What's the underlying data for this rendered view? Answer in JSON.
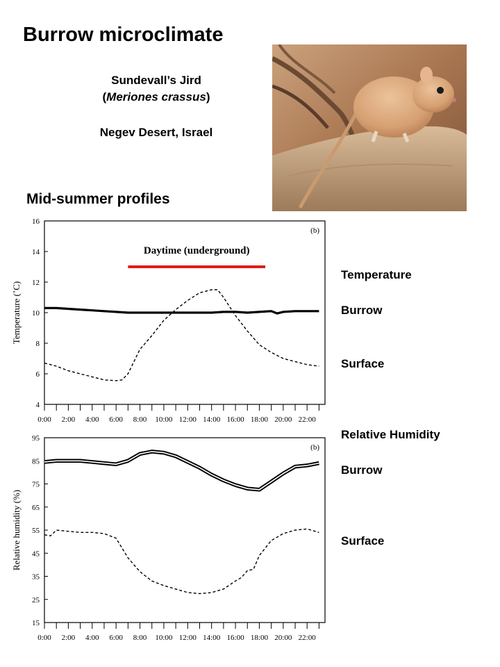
{
  "title": "Burrow microclimate",
  "species": {
    "common_name": "Sundevall’s Jird",
    "scientific_name_prefix": "(",
    "scientific_name": "Meriones crassus",
    "scientific_name_suffix": ")",
    "location": "Negev Desert, Israel"
  },
  "subtitle": "Mid-summer profiles",
  "legend_side": {
    "temperature_heading": "Temperature",
    "temp_burrow": "Burrow",
    "temp_surface": "Surface",
    "humidity_heading": "Relative Humidity",
    "rh_burrow": "Burrow",
    "rh_surface": "Surface"
  },
  "colors": {
    "daytime_bar": "#e01b1b",
    "line": "#000000",
    "photo_background": "#b07c54",
    "animal_fur": "#d9a478"
  },
  "photo": {
    "subject": "jird-on-rock"
  },
  "chart_data": [
    {
      "type": "line",
      "panel_label": "(b)",
      "ylabel": "Temperature (˚C)",
      "xlabel": "",
      "ylim": [
        4,
        16
      ],
      "yticks": [
        4,
        6,
        8,
        10,
        12,
        14,
        16
      ],
      "xlim": [
        0,
        23.5
      ],
      "xticks": [
        "0:00",
        "2:00",
        "4:00",
        "6:00",
        "8:00",
        "10:00",
        "12:00",
        "14:00",
        "16:00",
        "18:00",
        "20:00",
        "22:00"
      ],
      "annotation": {
        "label": "Daytime (underground)",
        "x_start": 7,
        "x_end": 18.5
      },
      "series": [
        {
          "style": "solid-thick",
          "x": [
            0,
            1,
            2,
            3,
            4,
            5,
            6,
            7,
            8,
            9,
            10,
            11,
            12,
            13,
            14,
            15,
            16,
            17,
            18,
            19,
            19.5,
            20,
            21,
            22,
            23
          ],
          "y": [
            10.3,
            10.3,
            10.25,
            10.2,
            10.15,
            10.1,
            10.05,
            10.0,
            10.0,
            10.0,
            10.0,
            10.0,
            10.0,
            10.0,
            10.0,
            10.05,
            10.05,
            10.0,
            10.05,
            10.1,
            9.95,
            10.05,
            10.1,
            10.1,
            10.1
          ]
        },
        {
          "style": "dashed",
          "x": [
            0,
            1,
            2,
            3,
            4,
            5,
            6,
            6.5,
            7,
            8,
            9,
            10,
            11,
            12,
            13,
            14,
            14.5,
            15,
            16,
            17,
            18,
            19,
            20,
            21,
            22,
            23
          ],
          "y": [
            6.7,
            6.5,
            6.2,
            6.0,
            5.8,
            5.6,
            5.55,
            5.6,
            6.0,
            7.6,
            8.5,
            9.5,
            10.2,
            10.8,
            11.3,
            11.5,
            11.5,
            11.0,
            9.8,
            8.8,
            7.9,
            7.4,
            7.0,
            6.8,
            6.6,
            6.5
          ]
        }
      ]
    },
    {
      "type": "line",
      "panel_label": "(b)",
      "ylabel": "Relative humidity (%)",
      "xlabel": "",
      "ylim": [
        15,
        95
      ],
      "yticks": [
        15,
        25,
        35,
        45,
        55,
        65,
        75,
        85,
        95
      ],
      "xlim": [
        0,
        23.5
      ],
      "xticks": [
        "0:00",
        "2:00",
        "4:00",
        "6:00",
        "8:00",
        "10:00",
        "12:00",
        "14:00",
        "16:00",
        "18:00",
        "20:00",
        "22:00"
      ],
      "series": [
        {
          "style": "solid-double",
          "x": [
            0,
            1,
            2,
            3,
            4,
            5,
            6,
            7,
            8,
            9,
            10,
            11,
            12,
            13,
            14,
            15,
            16,
            17,
            18,
            19,
            20,
            21,
            22,
            23
          ],
          "y": [
            84.5,
            85,
            85,
            85,
            84.5,
            84,
            83.5,
            85,
            88,
            89,
            88.5,
            87,
            84.5,
            82,
            79,
            76.5,
            74.5,
            73,
            72.5,
            76,
            79.5,
            82.5,
            83,
            84
          ]
        },
        {
          "style": "dashed",
          "x": [
            0,
            0.5,
            1,
            2,
            3,
            4,
            5,
            6,
            7,
            8,
            9,
            10,
            11,
            12,
            13,
            14,
            15,
            16,
            16.5,
            17,
            17.5,
            18,
            19,
            20,
            21,
            22,
            23
          ],
          "y": [
            53,
            52.5,
            55,
            54.5,
            54,
            54,
            53.5,
            51.5,
            43,
            37,
            33,
            31,
            29.5,
            28,
            27.5,
            28,
            29.5,
            33,
            34.5,
            37.5,
            38,
            44,
            50.5,
            53.5,
            55,
            55.5,
            54
          ]
        }
      ]
    }
  ]
}
